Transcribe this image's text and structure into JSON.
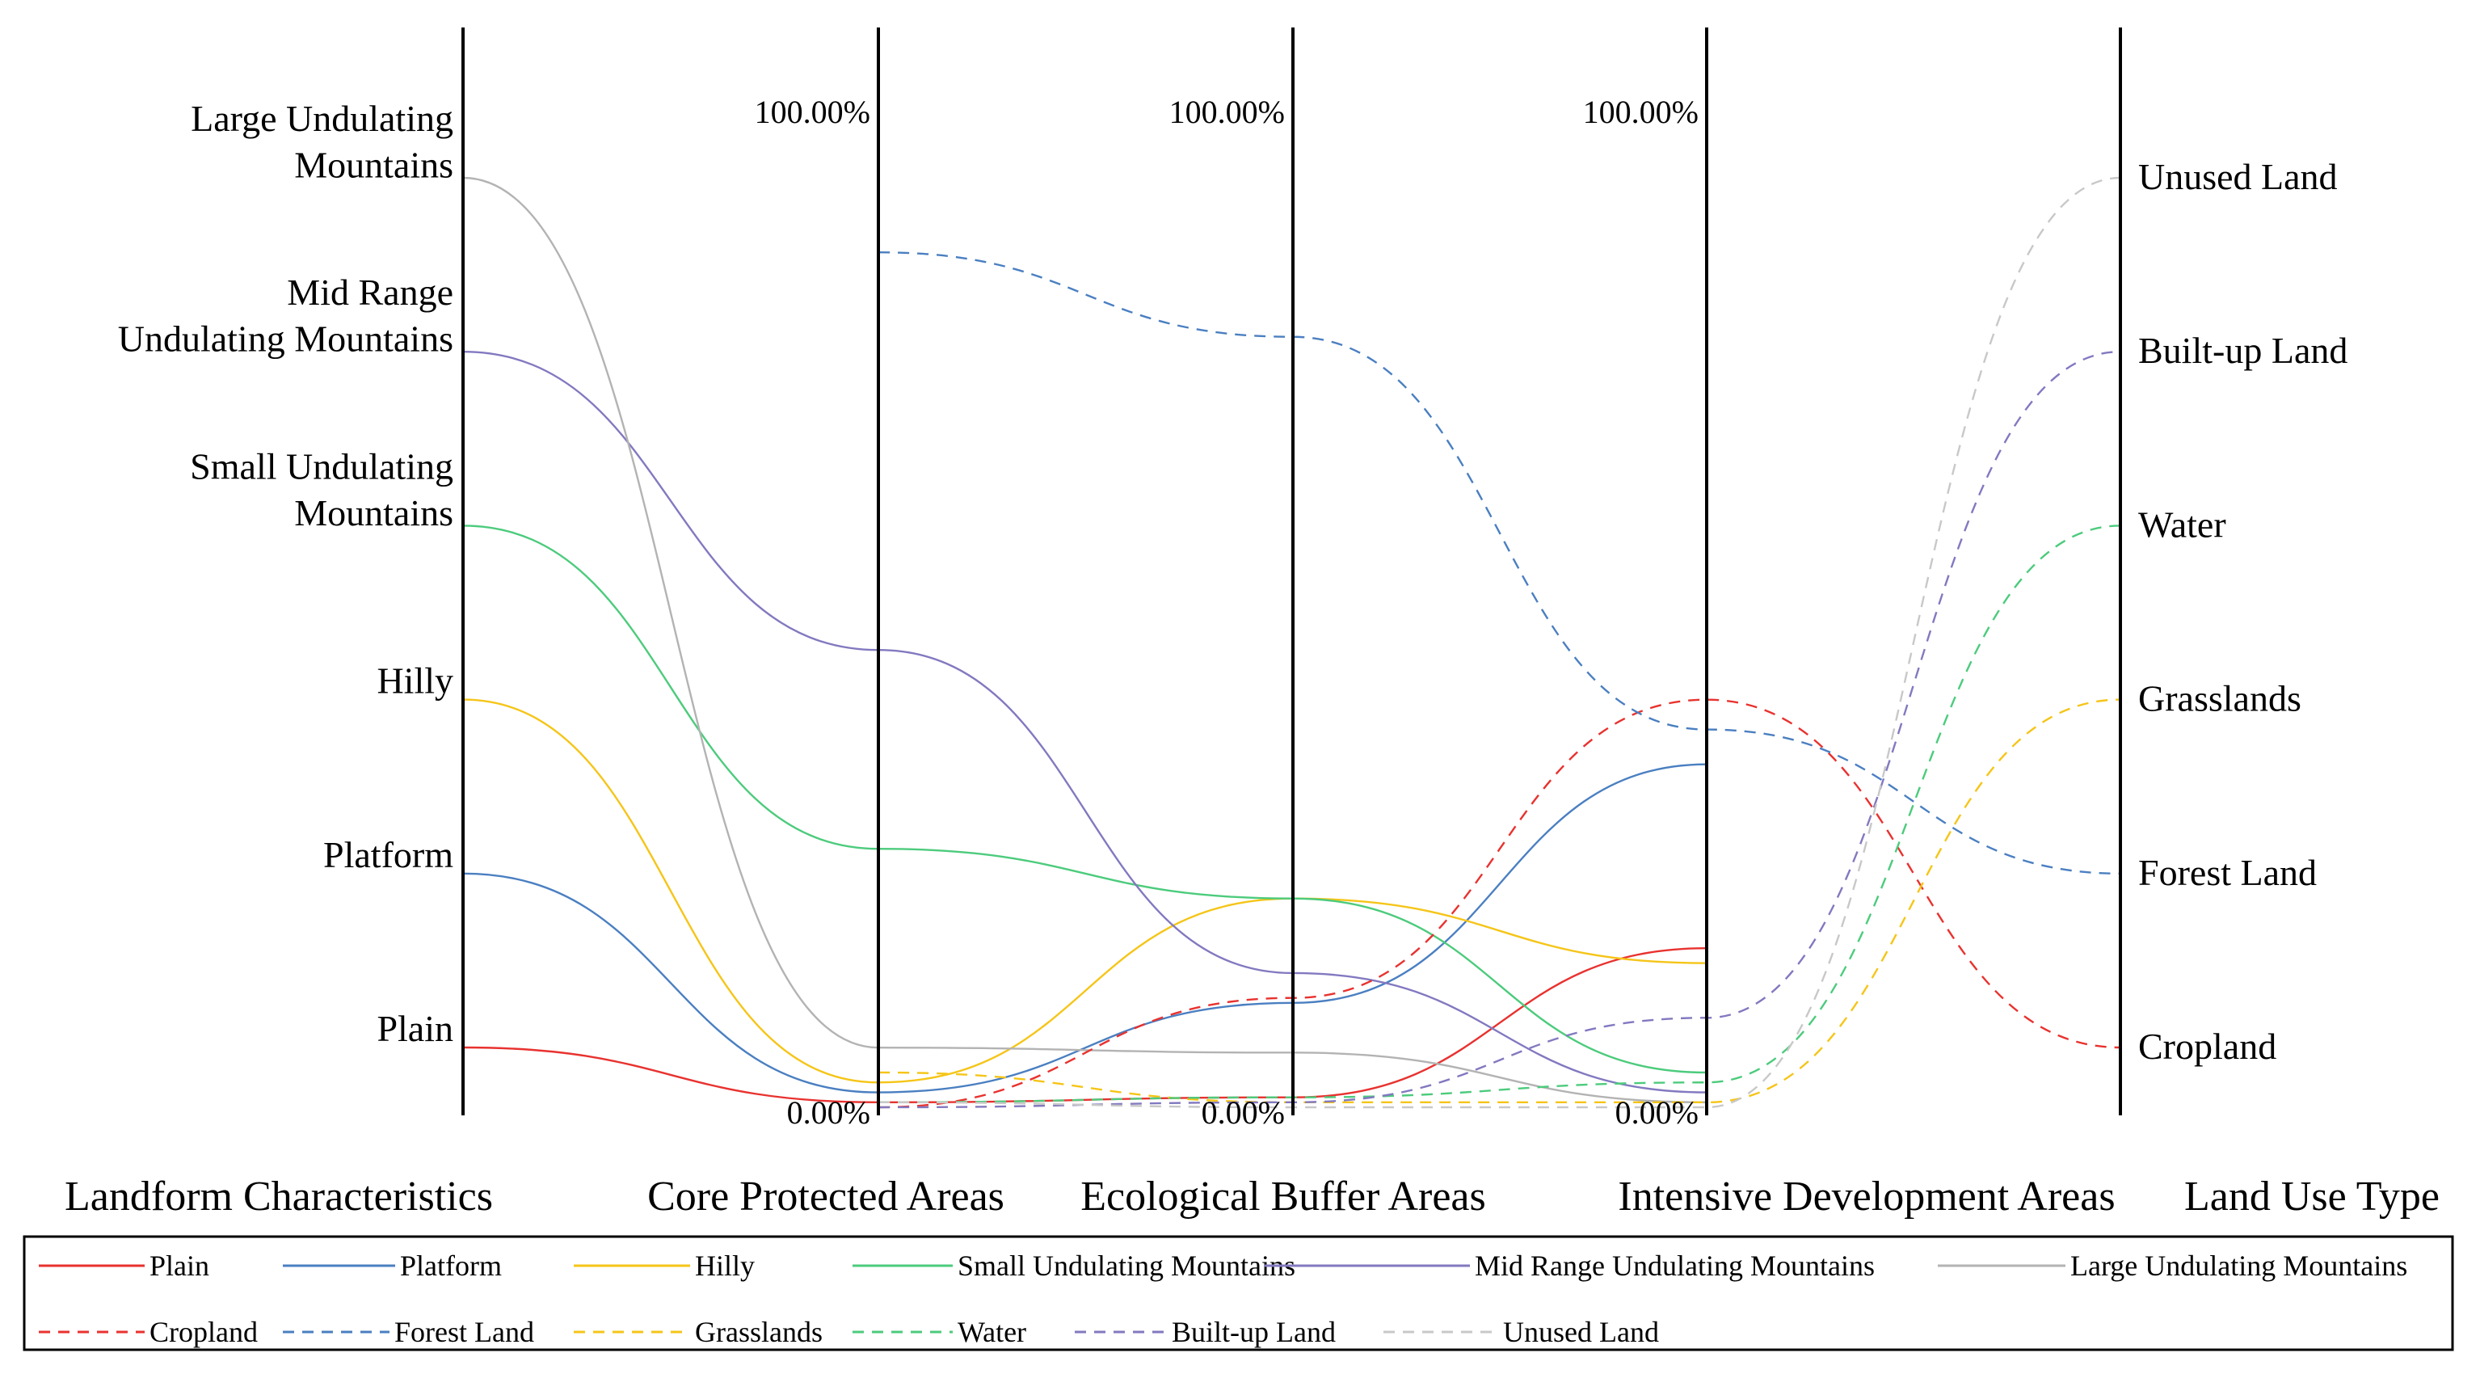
{
  "chart_data": {
    "type": "parallel-coordinates",
    "axes": [
      {
        "name": "Landform Characteristics",
        "kind": "categorical",
        "categories": [
          "Plain",
          "Platform",
          "Hilly",
          "Small Undulating Mountains",
          "Mid Range Undulating Mountains",
          "Large Undulating Mountains"
        ],
        "label_lines": [
          [
            "Plain"
          ],
          [
            "Platform"
          ],
          [
            "Hilly"
          ],
          [
            "Small Undulating",
            "Mountains"
          ],
          [
            "Mid Range",
            "Undulating Mountains"
          ],
          [
            "Large Undulating",
            "Mountains"
          ]
        ]
      },
      {
        "name": "Core Protected Areas",
        "kind": "percent",
        "max_label": "100.00%",
        "min_label": "0.00%"
      },
      {
        "name": "Ecological Buffer Areas",
        "kind": "percent",
        "max_label": "100.00%",
        "min_label": "0.00%"
      },
      {
        "name": "Intensive Development Areas",
        "kind": "percent",
        "max_label": "100.00%",
        "min_label": "0.00%"
      },
      {
        "name": "Land Use Type",
        "kind": "categorical",
        "categories": [
          "Cropland",
          "Forest Land",
          "Grasslands",
          "Water",
          "Built-up Land",
          "Unused Land"
        ]
      }
    ],
    "landform_series": [
      {
        "name": "Plain",
        "color": "#e8322f",
        "values": [
          0.5,
          1.0,
          16.0
        ]
      },
      {
        "name": "Platform",
        "color": "#4a7fc1",
        "values": [
          1.5,
          10.5,
          34.5
        ]
      },
      {
        "name": "Hilly",
        "color": "#f5c518",
        "values": [
          2.5,
          21.0,
          14.5
        ]
      },
      {
        "name": "Small Undulating Mountains",
        "color": "#4ccb7c",
        "values": [
          26.0,
          21.0,
          3.5
        ]
      },
      {
        "name": "Mid Range Undulating Mountains",
        "color": "#8279c0",
        "values": [
          46.0,
          13.5,
          1.5
        ]
      },
      {
        "name": "Large Undulating Mountains",
        "color": "#b3b3b3",
        "values": [
          6.0,
          5.5,
          0.5
        ]
      }
    ],
    "landuse_series": [
      {
        "name": "Cropland",
        "color": "#e8322f",
        "values": [
          0.0,
          11.0,
          41.0
        ]
      },
      {
        "name": "Forest Land",
        "color": "#4a7fc1",
        "values": [
          86.0,
          77.5,
          38.0
        ]
      },
      {
        "name": "Grasslands",
        "color": "#f5c518",
        "values": [
          3.5,
          0.5,
          0.5
        ]
      },
      {
        "name": "Water",
        "color": "#4ccb7c",
        "values": [
          0.5,
          1.0,
          2.5
        ]
      },
      {
        "name": "Built-up Land",
        "color": "#8279c0",
        "values": [
          0.0,
          0.5,
          9.0
        ]
      },
      {
        "name": "Unused Land",
        "color": "#c8c8c8",
        "values": [
          0.5,
          0.0,
          0.0
        ]
      }
    ],
    "legend": {
      "solid": [
        "Plain",
        "Platform",
        "Hilly",
        "Small Undulating Mountains",
        "Mid Range Undulating Mountains",
        "Large Undulating Mountains"
      ],
      "dashed": [
        "Cropland",
        "Forest Land",
        "Grasslands",
        "Water",
        "Built-up Land",
        "Unused Land"
      ]
    }
  }
}
